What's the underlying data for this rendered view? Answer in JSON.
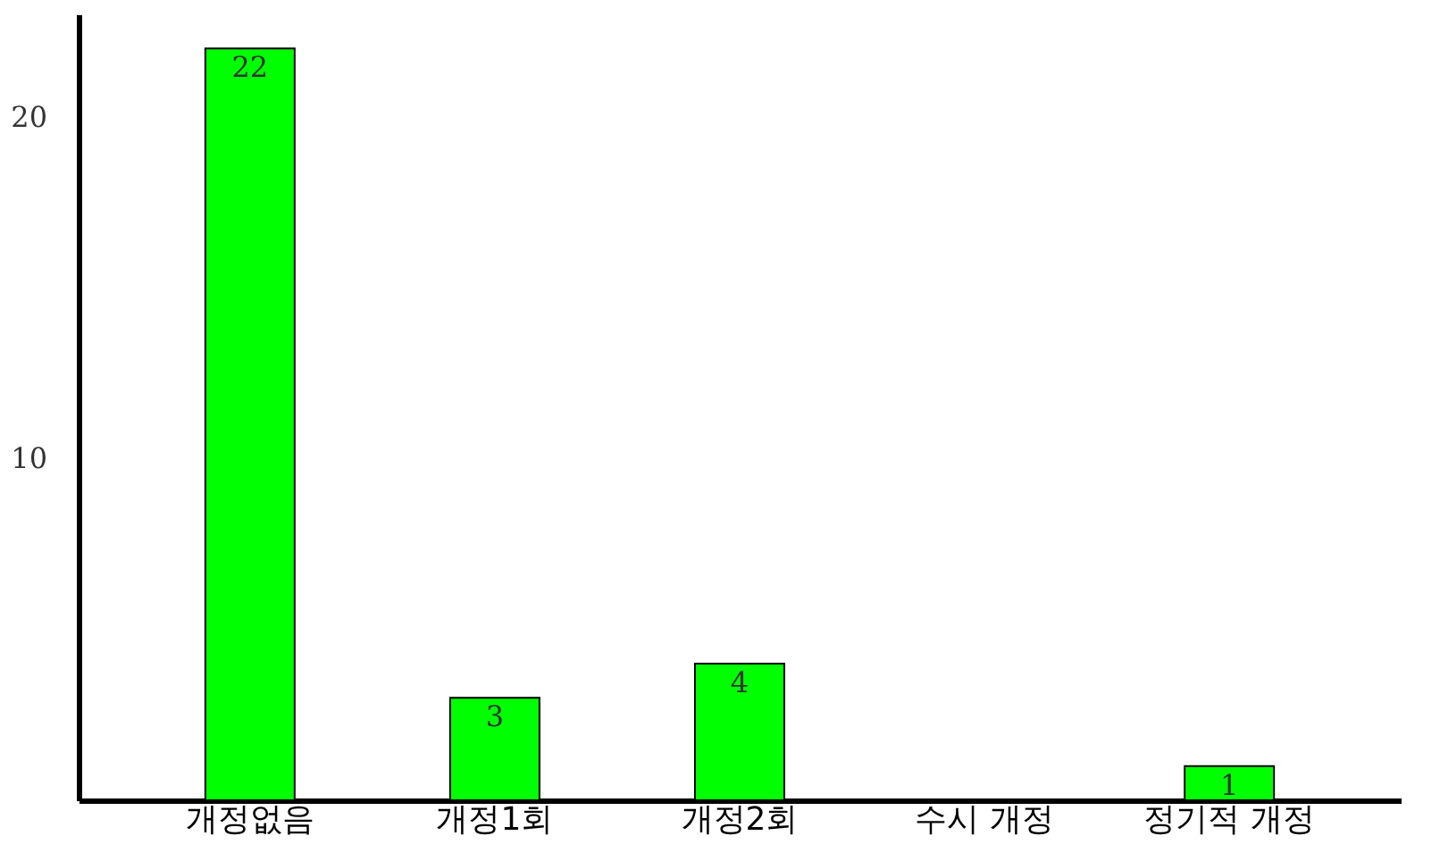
{
  "chart_data": {
    "type": "bar",
    "categories": [
      "개정없음",
      "개정1회",
      "개정2회",
      "수시 개정",
      "정기적 개정"
    ],
    "values": [
      22,
      3,
      4,
      0,
      1
    ],
    "color": "#00ff00",
    "ylim": [
      0,
      23
    ],
    "yticks": [
      10,
      20
    ],
    "value_labels": [
      "22",
      "3",
      "4",
      null,
      "1"
    ],
    "grid": false
  }
}
